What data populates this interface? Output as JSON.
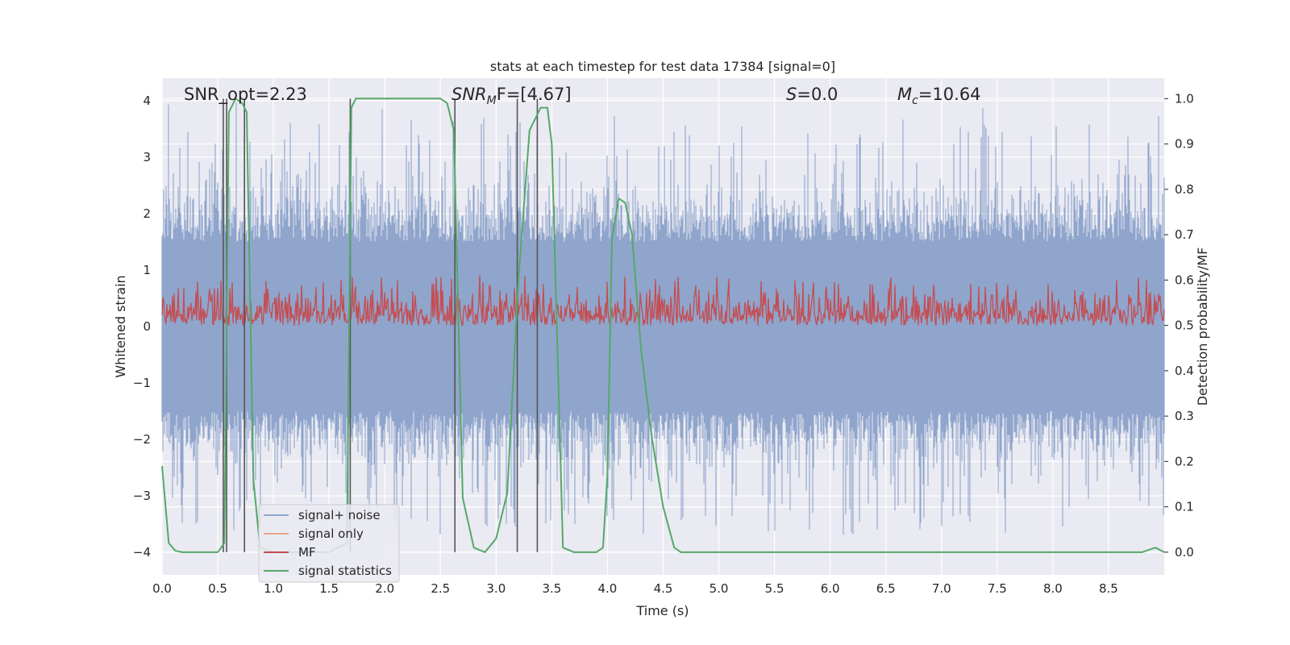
{
  "chart_data": {
    "type": "line",
    "title": "stats at each timestep for test data 17384 [signal=0]",
    "xlabel": "Time (s)",
    "ylabel_left": "Whitened strain",
    "ylabel_right": "Detection probability/MF",
    "xlim": [
      0.0,
      9.0
    ],
    "ylim_left": [
      -4.4,
      4.4
    ],
    "ylim_right": [
      -0.05,
      1.045
    ],
    "x_ticks": [
      0.0,
      0.5,
      1.0,
      1.5,
      2.0,
      2.5,
      3.0,
      3.5,
      4.0,
      4.5,
      5.0,
      5.5,
      6.0,
      6.5,
      7.0,
      7.5,
      8.0,
      8.5
    ],
    "x_tick_labels": [
      "0.0",
      "0.5",
      "1.0",
      "1.5",
      "2.0",
      "2.5",
      "3.0",
      "3.5",
      "4.0",
      "4.5",
      "5.0",
      "5.5",
      "6.0",
      "6.5",
      "7.0",
      "7.5",
      "8.0",
      "8.5"
    ],
    "y_left_ticks": [
      -4,
      -3,
      -2,
      -1,
      0,
      1,
      2,
      3,
      4
    ],
    "y_left_tick_labels": [
      "−4",
      "−3",
      "−2",
      "−1",
      "0",
      "1",
      "2",
      "3",
      "4"
    ],
    "y_right_ticks": [
      0.0,
      0.1,
      0.2,
      0.3,
      0.4,
      0.5,
      0.6,
      0.7,
      0.8,
      0.9,
      1.0
    ],
    "y_right_tick_labels": [
      "0.0",
      "0.1",
      "0.2",
      "0.3",
      "0.4",
      "0.5",
      "0.6",
      "0.7",
      "0.8",
      "0.9",
      "1.0"
    ],
    "annotations": {
      "snr_opt": "SNR_opt=2.23",
      "snr_mf_main": "SNR",
      "snr_mf_sub": "M",
      "snr_mf_rest": "F=[4.67]",
      "s_main": "S",
      "s_rest": "=0.0",
      "mc_main": "M",
      "mc_sub": "c",
      "mc_rest": "=10.64"
    },
    "legend": [
      "signal+ noise",
      "signal only",
      "MF",
      "signal statistics"
    ],
    "series": [
      {
        "name": "signal+ noise",
        "color": "#8fa5cc",
        "description": "noise band, roughly ±2 with spikes to ±4"
      },
      {
        "name": "signal only",
        "color": "#e8a98a",
        "values_note": "flat at 0"
      },
      {
        "name": "MF",
        "color": "#c44e52",
        "level_right_axis": [
          0.5,
          0.62
        ]
      },
      {
        "name": "signal statistics",
        "color": "#55a868",
        "x": [
          0.0,
          0.06,
          0.12,
          0.18,
          0.3,
          0.5,
          0.56,
          0.6,
          0.66,
          0.72,
          0.76,
          0.82,
          0.88,
          1.0,
          1.5,
          1.66,
          1.7,
          1.74,
          1.82,
          2.0,
          2.5,
          2.56,
          2.62,
          2.7,
          2.8,
          2.9,
          3.0,
          3.1,
          3.2,
          3.3,
          3.4,
          3.46,
          3.5,
          3.6,
          3.7,
          3.9,
          3.96,
          4.0,
          4.04,
          4.1,
          4.16,
          4.22,
          4.3,
          4.4,
          4.5,
          4.6,
          4.66,
          4.8,
          5.0,
          6.0,
          7.0,
          8.0,
          8.7,
          8.8,
          8.92,
          9.0
        ],
        "values": [
          0.19,
          0.02,
          0.003,
          0.0,
          0.0,
          0.0,
          0.02,
          0.97,
          1.0,
          0.99,
          0.97,
          0.16,
          0.01,
          0.0,
          0.0,
          0.02,
          0.98,
          1.0,
          1.0,
          1.0,
          1.0,
          0.99,
          0.93,
          0.12,
          0.01,
          0.0,
          0.03,
          0.13,
          0.6,
          0.93,
          0.98,
          0.98,
          0.9,
          0.01,
          0.0,
          0.0,
          0.01,
          0.17,
          0.69,
          0.78,
          0.77,
          0.7,
          0.45,
          0.25,
          0.1,
          0.01,
          0.0,
          0.0,
          0.0,
          0.0,
          0.0,
          0.0,
          0.0,
          0.0,
          0.01,
          0.0
        ]
      }
    ],
    "vertical_lines_x": [
      0.55,
      0.58,
      0.74,
      1.69,
      2.63,
      3.19,
      3.37
    ]
  },
  "colors": {
    "plot_bg": "#eaeaf2",
    "grid": "#ffffff",
    "vline": "#555555",
    "legend_bg": "#eaeaf2",
    "legend_border": "#cccccc"
  }
}
